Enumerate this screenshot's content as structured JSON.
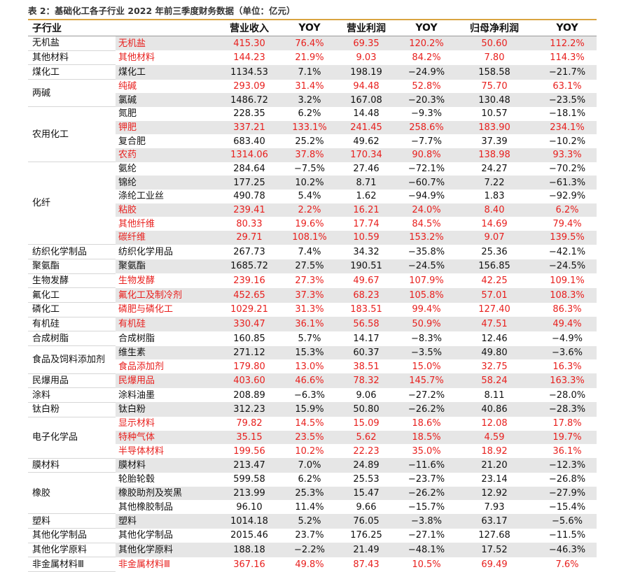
{
  "title": "表 2：基础化工各子行业 2022 年前三季度财务数据（单位：亿元）",
  "table": {
    "header": [
      "子行业",
      "营业收入",
      "YOY",
      "营业利润",
      "YOY",
      "归母净利润",
      "YOY"
    ],
    "groups": [
      {
        "name": "无机盐",
        "items": [
          {
            "sub": "无机盐",
            "highlight": true,
            "cells": [
              "415.30",
              "76.4%",
              "69.35",
              "120.2%",
              "50.60",
              "112.2%"
            ]
          }
        ]
      },
      {
        "name": "其他材料",
        "items": [
          {
            "sub": "其他材料",
            "highlight": true,
            "cells": [
              "144.23",
              "21.9%",
              "9.03",
              "84.2%",
              "7.80",
              "114.3%"
            ]
          }
        ]
      },
      {
        "name": "煤化工",
        "items": [
          {
            "sub": "煤化工",
            "highlight": false,
            "cells": [
              "1134.53",
              "7.1%",
              "198.19",
              "−24.9%",
              "158.58",
              "−21.7%"
            ]
          }
        ]
      },
      {
        "name": "两碱",
        "items": [
          {
            "sub": "纯碱",
            "highlight": true,
            "cells": [
              "293.09",
              "31.4%",
              "94.48",
              "52.8%",
              "75.70",
              "63.1%"
            ]
          },
          {
            "sub": "氯碱",
            "highlight": false,
            "cells": [
              "1486.72",
              "3.2%",
              "167.08",
              "−20.3%",
              "130.48",
              "−23.5%"
            ]
          }
        ]
      },
      {
        "name": "农用化工",
        "items": [
          {
            "sub": "氮肥",
            "highlight": false,
            "cells": [
              "228.35",
              "6.2%",
              "14.48",
              "−9.3%",
              "10.57",
              "−18.1%"
            ]
          },
          {
            "sub": "钾肥",
            "highlight": true,
            "cells": [
              "337.21",
              "133.1%",
              "241.45",
              "258.6%",
              "183.90",
              "234.1%"
            ]
          },
          {
            "sub": "复合肥",
            "highlight": false,
            "cells": [
              "683.40",
              "25.2%",
              "49.62",
              "−7.7%",
              "37.39",
              "−10.2%"
            ]
          },
          {
            "sub": "农药",
            "highlight": true,
            "cells": [
              "1314.06",
              "37.8%",
              "170.34",
              "90.8%",
              "138.98",
              "93.3%"
            ]
          }
        ]
      },
      {
        "name": "化纤",
        "items": [
          {
            "sub": "氨纶",
            "highlight": false,
            "cells": [
              "284.64",
              "−7.5%",
              "27.46",
              "−72.1%",
              "24.27",
              "−70.2%"
            ]
          },
          {
            "sub": "锦纶",
            "highlight": false,
            "cells": [
              "177.25",
              "10.2%",
              "8.71",
              "−60.7%",
              "7.22",
              "−61.3%"
            ]
          },
          {
            "sub": "涤纶工业丝",
            "highlight": false,
            "cells": [
              "490.78",
              "5.4%",
              "1.62",
              "−94.9%",
              "1.83",
              "−92.9%"
            ]
          },
          {
            "sub": "粘胶",
            "highlight": true,
            "cells": [
              "239.41",
              "2.2%",
              "16.21",
              "24.0%",
              "8.40",
              "6.2%"
            ]
          },
          {
            "sub": "其他纤维",
            "highlight": true,
            "cells": [
              "80.33",
              "19.6%",
              "17.74",
              "84.5%",
              "14.69",
              "79.4%"
            ]
          },
          {
            "sub": "碳纤维",
            "highlight": true,
            "cells": [
              "29.71",
              "108.1%",
              "10.59",
              "153.2%",
              "9.07",
              "139.5%"
            ]
          }
        ]
      },
      {
        "name": "纺织化学制品",
        "items": [
          {
            "sub": "纺织化学用品",
            "highlight": false,
            "cells": [
              "267.73",
              "7.4%",
              "34.32",
              "−35.8%",
              "25.36",
              "−42.1%"
            ]
          }
        ]
      },
      {
        "name": "聚氨酯",
        "items": [
          {
            "sub": "聚氨酯",
            "highlight": false,
            "cells": [
              "1685.72",
              "27.5%",
              "190.51",
              "−24.5%",
              "156.85",
              "−24.5%"
            ]
          }
        ]
      },
      {
        "name": "生物发酵",
        "items": [
          {
            "sub": "生物发酵",
            "highlight": true,
            "cells": [
              "239.16",
              "27.3%",
              "49.67",
              "107.9%",
              "42.25",
              "109.1%"
            ]
          }
        ]
      },
      {
        "name": "氟化工",
        "items": [
          {
            "sub": "氟化工及制冷剂",
            "highlight": true,
            "cells": [
              "452.65",
              "37.3%",
              "68.23",
              "105.8%",
              "57.01",
              "108.3%"
            ]
          }
        ]
      },
      {
        "name": "磷化工",
        "items": [
          {
            "sub": "磷肥与磷化工",
            "highlight": true,
            "cells": [
              "1029.21",
              "31.3%",
              "183.51",
              "99.4%",
              "127.40",
              "86.3%"
            ]
          }
        ]
      },
      {
        "name": "有机硅",
        "items": [
          {
            "sub": "有机硅",
            "highlight": true,
            "cells": [
              "330.47",
              "36.1%",
              "56.58",
              "50.9%",
              "47.51",
              "49.4%"
            ]
          }
        ]
      },
      {
        "name": "合成树脂",
        "items": [
          {
            "sub": "合成树脂",
            "highlight": false,
            "cells": [
              "160.85",
              "5.7%",
              "14.17",
              "−8.3%",
              "12.46",
              "−4.9%"
            ]
          }
        ]
      },
      {
        "name": "食品及饲料添加剂",
        "items": [
          {
            "sub": "维生素",
            "highlight": false,
            "cells": [
              "271.12",
              "15.3%",
              "60.37",
              "−3.5%",
              "49.80",
              "−3.6%"
            ]
          },
          {
            "sub": "食品添加剂",
            "highlight": true,
            "cells": [
              "179.80",
              "13.0%",
              "38.51",
              "15.0%",
              "32.75",
              "16.3%"
            ]
          }
        ]
      },
      {
        "name": "民爆用品",
        "items": [
          {
            "sub": "民爆用品",
            "highlight": true,
            "cells": [
              "403.60",
              "46.6%",
              "78.32",
              "145.7%",
              "58.24",
              "163.3%"
            ]
          }
        ]
      },
      {
        "name": "涂料",
        "items": [
          {
            "sub": "涂料油墨",
            "highlight": false,
            "cells": [
              "208.89",
              "−6.3%",
              "9.06",
              "−27.2%",
              "8.11",
              "−28.0%"
            ]
          }
        ]
      },
      {
        "name": "钛白粉",
        "items": [
          {
            "sub": "钛白粉",
            "highlight": false,
            "cells": [
              "312.23",
              "15.9%",
              "50.80",
              "−26.2%",
              "40.86",
              "−28.3%"
            ]
          }
        ]
      },
      {
        "name": "电子化学品",
        "items": [
          {
            "sub": "显示材料",
            "highlight": true,
            "cells": [
              "79.82",
              "14.5%",
              "15.09",
              "18.6%",
              "12.08",
              "17.8%"
            ]
          },
          {
            "sub": "特种气体",
            "highlight": true,
            "cells": [
              "35.15",
              "23.5%",
              "5.62",
              "18.5%",
              "4.59",
              "19.7%"
            ]
          },
          {
            "sub": "半导体材料",
            "highlight": true,
            "cells": [
              "199.56",
              "10.2%",
              "22.23",
              "35.0%",
              "18.92",
              "36.1%"
            ]
          }
        ]
      },
      {
        "name": "膜材料",
        "items": [
          {
            "sub": "膜材料",
            "highlight": false,
            "cells": [
              "213.47",
              "7.0%",
              "24.89",
              "−11.6%",
              "21.20",
              "−12.3%"
            ]
          }
        ]
      },
      {
        "name": "橡胶",
        "items": [
          {
            "sub": "轮胎轮毂",
            "highlight": false,
            "cells": [
              "599.58",
              "6.2%",
              "25.53",
              "−23.7%",
              "23.14",
              "−26.8%"
            ]
          },
          {
            "sub": "橡胶助剂及炭黑",
            "highlight": false,
            "cells": [
              "213.99",
              "25.3%",
              "15.47",
              "−26.2%",
              "12.92",
              "−27.9%"
            ]
          },
          {
            "sub": "其他橡胶制品",
            "highlight": false,
            "cells": [
              "96.10",
              "11.4%",
              "9.66",
              "−15.7%",
              "7.93",
              "−15.4%"
            ]
          }
        ]
      },
      {
        "name": "塑料",
        "items": [
          {
            "sub": "塑料",
            "highlight": false,
            "cells": [
              "1014.18",
              "5.2%",
              "76.05",
              "−3.8%",
              "63.17",
              "−5.6%"
            ]
          }
        ]
      },
      {
        "name": "其他化学制品",
        "items": [
          {
            "sub": "其他化学制品",
            "highlight": false,
            "cells": [
              "2015.46",
              "23.7%",
              "176.25",
              "−27.1%",
              "127.68",
              "−11.5%"
            ]
          }
        ]
      },
      {
        "name": "其他化学原料",
        "items": [
          {
            "sub": "其他化学原料",
            "highlight": false,
            "cells": [
              "188.18",
              "−2.2%",
              "21.49",
              "−48.1%",
              "17.52",
              "−46.3%"
            ]
          }
        ]
      },
      {
        "name": "非金属材料Ⅲ",
        "items": [
          {
            "sub": "非金属材料Ⅲ",
            "highlight": true,
            "cells": [
              "367.16",
              "49.8%",
              "87.43",
              "10.5%",
              "69.49",
              "7.6%"
            ]
          }
        ]
      }
    ]
  }
}
